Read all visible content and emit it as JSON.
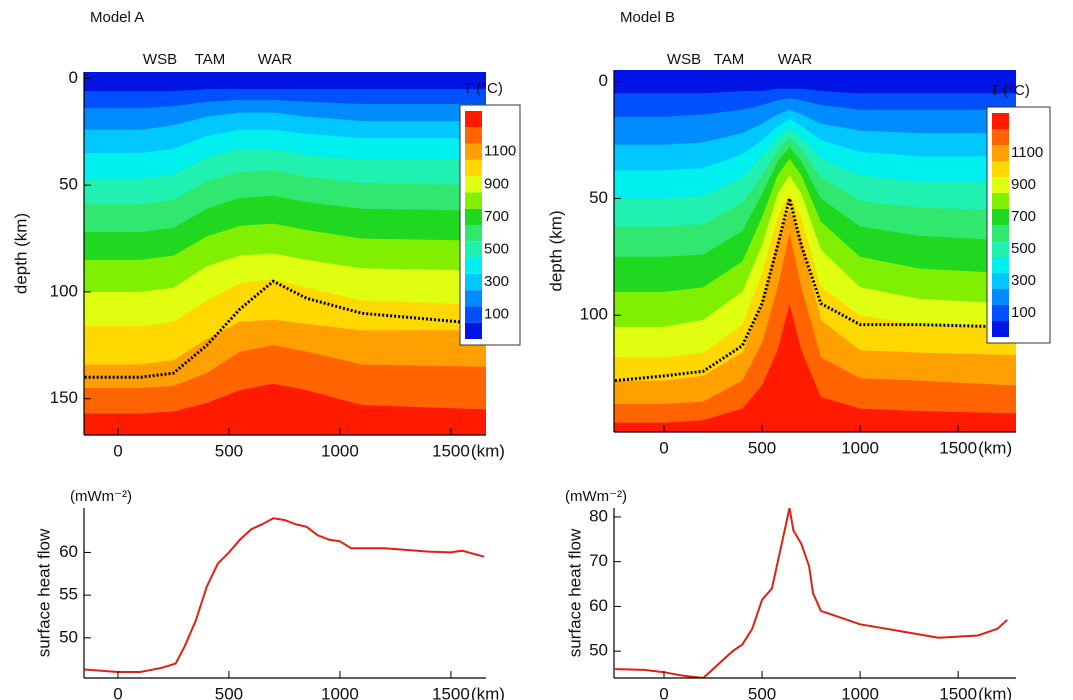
{
  "chart_data": [
    {
      "type": "contour",
      "title": "Model A",
      "annotations": [
        "WSB",
        "TAM",
        "WAR"
      ],
      "x": [
        -150,
        100,
        250,
        400,
        550,
        700,
        850,
        1100,
        1650
      ],
      "xlim": [
        -153,
        1658
      ],
      "xticks": [
        0,
        500,
        1000,
        1500
      ],
      "xlabel": "(km)",
      "ylim": [
        -3,
        167
      ],
      "y_inverted": true,
      "yticks": [
        0,
        50,
        100,
        150
      ],
      "ylabel": "depth (km)",
      "base_color": "#0014e6",
      "levels": [
        {
          "value": 100,
          "color": "#0050ff",
          "depths": [
            6,
            6,
            6,
            5,
            5,
            5,
            5,
            5,
            5
          ]
        },
        {
          "value": 200,
          "color": "#008cff",
          "depths": [
            14,
            14,
            13,
            11,
            10,
            10,
            11,
            12,
            12
          ]
        },
        {
          "value": 300,
          "color": "#00c8ff",
          "depths": [
            24,
            24,
            22,
            18,
            16,
            16,
            18,
            20,
            20
          ]
        },
        {
          "value": 400,
          "color": "#00f0f0",
          "depths": [
            35,
            35,
            33,
            27,
            24,
            24,
            26,
            28,
            28
          ]
        },
        {
          "value": 500,
          "color": "#20f0b0",
          "depths": [
            47,
            47,
            45,
            37,
            33,
            33,
            36,
            38,
            38
          ]
        },
        {
          "value": 600,
          "color": "#30e870",
          "depths": [
            59,
            59,
            57,
            48,
            44,
            43,
            46,
            49,
            50
          ]
        },
        {
          "value": 700,
          "color": "#20d820",
          "depths": [
            72,
            72,
            70,
            61,
            56,
            55,
            58,
            61,
            62
          ]
        },
        {
          "value": 800,
          "color": "#80f000",
          "depths": [
            85,
            85,
            83,
            74,
            69,
            68,
            71,
            75,
            76
          ]
        },
        {
          "value": 900,
          "color": "#e0ff10",
          "depths": [
            100,
            100,
            98,
            88,
            83,
            82,
            85,
            89,
            90
          ]
        },
        {
          "value": 1000,
          "color": "#ffd800",
          "depths": [
            116,
            116,
            114,
            104,
            96,
            94,
            98,
            104,
            106
          ]
        },
        {
          "value": 1100,
          "color": "#ffa000",
          "depths": [
            134,
            134,
            132,
            122,
            114,
            113,
            115,
            118,
            118
          ]
        },
        {
          "value": 1200,
          "color": "#ff6400",
          "depths": [
            145,
            145,
            144,
            138,
            128,
            125,
            128,
            134,
            135
          ]
        },
        {
          "value": 1300,
          "color": "#ff1a00",
          "depths": [
            157,
            157,
            156,
            152,
            146,
            143,
            146,
            153,
            155
          ]
        }
      ],
      "boundary": {
        "color": "#000000",
        "depths": [
          140,
          140,
          138,
          125,
          108,
          95,
          103,
          110,
          115
        ]
      },
      "colorbar": {
        "title": "T (°C)",
        "ticks": [
          100,
          300,
          500,
          700,
          900,
          1100
        ]
      }
    },
    {
      "type": "line",
      "unit": "(mWm⁻²)",
      "ylabel": "surface heat flow",
      "color": "#e02010",
      "x": [
        -150,
        0,
        100,
        200,
        260,
        300,
        350,
        400,
        450,
        500,
        550,
        600,
        650,
        700,
        750,
        800,
        850,
        900,
        950,
        1000,
        1050,
        1200,
        1400,
        1500,
        1550,
        1650
      ],
      "values": [
        46.3,
        46,
        46,
        46.5,
        47,
        49,
        52,
        56,
        58.7,
        60,
        61.5,
        62.7,
        63.3,
        64,
        63.8,
        63.3,
        63,
        62,
        61.5,
        61.3,
        60.5,
        60.5,
        60.1,
        60,
        60.2,
        59.5
      ],
      "xlim": [
        -153,
        1658
      ],
      "xticks": [
        0,
        500,
        1000,
        1500
      ],
      "xlabel": "(km)",
      "ylim": [
        45.3,
        65.2
      ],
      "yticks": [
        50,
        55,
        60
      ]
    },
    {
      "type": "contour",
      "title": "Model B",
      "annotations": [
        "WSB",
        "TAM",
        "WAR"
      ],
      "x": [
        -250,
        0,
        200,
        400,
        500,
        580,
        640,
        700,
        800,
        1000,
        1300,
        1750
      ],
      "xlim": [
        -255,
        1795
      ],
      "xticks": [
        0,
        500,
        1000,
        1500
      ],
      "xlabel": "(km)",
      "ylim": [
        -5,
        150
      ],
      "y_inverted": true,
      "yticks": [
        0,
        50,
        100
      ],
      "ylabel": "depth (km)",
      "base_color": "#0014e6",
      "levels": [
        {
          "value": 100,
          "color": "#0050ff",
          "depths": [
            5,
            5,
            5,
            4,
            4,
            3,
            3,
            3,
            4,
            5,
            5,
            5
          ]
        },
        {
          "value": 200,
          "color": "#008cff",
          "depths": [
            15,
            15,
            14,
            12,
            10,
            8,
            7,
            8,
            10,
            12,
            12,
            12
          ]
        },
        {
          "value": 300,
          "color": "#00c8ff",
          "depths": [
            27,
            27,
            26,
            22,
            18,
            14,
            12,
            14,
            18,
            21,
            22,
            22
          ]
        },
        {
          "value": 400,
          "color": "#00f0f0",
          "depths": [
            38,
            38,
            37,
            31,
            25,
            19,
            16,
            19,
            25,
            30,
            32,
            32
          ]
        },
        {
          "value": 500,
          "color": "#20f0b0",
          "depths": [
            50,
            50,
            49,
            41,
            32,
            24,
            20,
            24,
            33,
            40,
            43,
            43
          ]
        },
        {
          "value": 600,
          "color": "#30e870",
          "depths": [
            62,
            62,
            61,
            52,
            40,
            29,
            24,
            29,
            41,
            51,
            54,
            55
          ]
        },
        {
          "value": 700,
          "color": "#20d820",
          "depths": [
            75,
            75,
            74,
            64,
            48,
            34,
            28,
            34,
            50,
            62,
            66,
            68
          ]
        },
        {
          "value": 800,
          "color": "#80f000",
          "depths": [
            90,
            90,
            88,
            77,
            58,
            40,
            33,
            40,
            60,
            75,
            80,
            82
          ]
        },
        {
          "value": 900,
          "color": "#e0ff10",
          "depths": [
            105,
            105,
            102,
            90,
            70,
            48,
            40,
            48,
            72,
            88,
            93,
            95
          ]
        },
        {
          "value": 1000,
          "color": "#ffd800",
          "depths": [
            118,
            118,
            116,
            104,
            82,
            58,
            48,
            58,
            88,
            100,
            104,
            105
          ]
        },
        {
          "value": 1100,
          "color": "#ffa000",
          "depths": [
            128,
            128,
            126,
            116,
            95,
            68,
            55,
            68,
            102,
            115,
            116,
            117
          ]
        },
        {
          "value": 1200,
          "color": "#ff6400",
          "depths": [
            138,
            138,
            137,
            128,
            112,
            88,
            65,
            88,
            118,
            127,
            128,
            130
          ]
        },
        {
          "value": 1300,
          "color": "#ff1a00",
          "depths": [
            146,
            146,
            145,
            140,
            130,
            115,
            95,
            115,
            135,
            140,
            141,
            142
          ]
        }
      ],
      "boundary": {
        "color": "#000000",
        "depths": [
          128,
          126,
          124,
          113,
          95,
          70,
          50,
          70,
          95,
          104,
          104,
          105
        ]
      },
      "colorbar": {
        "title": "T (°C)",
        "ticks": [
          100,
          300,
          500,
          700,
          900,
          1100
        ]
      }
    },
    {
      "type": "line",
      "unit": "(mWm⁻²)",
      "ylabel": "surface heat flow",
      "color": "#e02010",
      "x": [
        -250,
        -100,
        0,
        100,
        200,
        250,
        300,
        350,
        400,
        450,
        500,
        550,
        600,
        620,
        640,
        660,
        700,
        740,
        760,
        800,
        900,
        1000,
        1200,
        1400,
        1600,
        1700,
        1750
      ],
      "values": [
        46,
        45.8,
        45.3,
        44.5,
        44,
        46,
        48,
        50,
        51.5,
        55,
        61.5,
        64,
        74,
        78,
        82,
        77,
        74,
        69,
        63,
        59,
        57.5,
        56,
        54.5,
        53,
        53.5,
        55,
        57
      ],
      "xlim": [
        -255,
        1795
      ],
      "xticks": [
        0,
        500,
        1000,
        1500
      ],
      "xlabel": "(km)",
      "ylim": [
        44,
        82
      ],
      "yticks": [
        50,
        60,
        70,
        80
      ]
    }
  ]
}
